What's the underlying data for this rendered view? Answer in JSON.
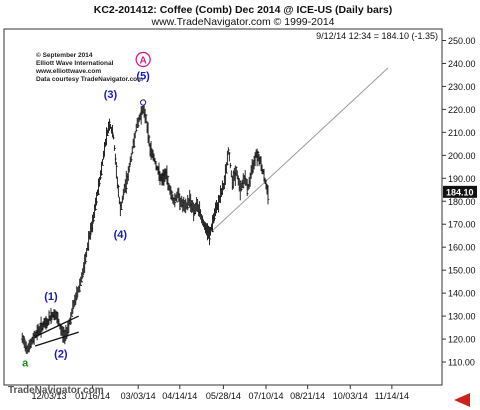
{
  "chart_data": {
    "type": "ohlc",
    "title": "KC2-201412:  Coffee (Comb) Dec 2014 @ ICE-US  (Daily bars)",
    "subtitle": "www.TradeNavigator.com © 1999-2014",
    "quote": "9/12/14 12:34 = 184.10 (-1.35)",
    "last_price": "184.10",
    "credits": [
      "© September 2014",
      "Elliott Wave International",
      "www.elliottwave.com",
      "Data courtesy TradeNavigator.com"
    ],
    "watermark": "TradeNavigator.com",
    "ylim": [
      100,
      255
    ],
    "y_ticks": [
      "110.00",
      "120.00",
      "130.00",
      "140.00",
      "150.00",
      "160.00",
      "170.00",
      "180.00",
      "190.00",
      "200.00",
      "210.00",
      "220.00",
      "230.00",
      "240.00",
      "250.00"
    ],
    "y_tick_values": [
      110,
      120,
      130,
      140,
      150,
      160,
      170,
      180,
      190,
      200,
      210,
      220,
      230,
      240,
      250
    ],
    "x_ticks": [
      "12/03/13",
      "01/16/14",
      "03/03/14",
      "04/14/14",
      "05/28/14",
      "07/10/14",
      "08/21/14",
      "10/03/14",
      "11/14/14"
    ],
    "x_tick_days": [
      0,
      44,
      90,
      132,
      176,
      219,
      261,
      304,
      346
    ],
    "x_range": [
      -28,
      362
    ],
    "price_path": [
      [
        -27,
        120
      ],
      [
        -22,
        116
      ],
      [
        -18,
        118
      ],
      [
        -14,
        122
      ],
      [
        -10,
        124
      ],
      [
        -6,
        126
      ],
      [
        -2,
        127
      ],
      [
        2,
        130
      ],
      [
        6,
        131
      ],
      [
        9,
        128
      ],
      [
        12,
        124
      ],
      [
        16,
        121
      ],
      [
        20,
        126
      ],
      [
        25,
        135
      ],
      [
        30,
        142
      ],
      [
        36,
        152
      ],
      [
        40,
        163
      ],
      [
        44,
        170
      ],
      [
        48,
        181
      ],
      [
        53,
        194
      ],
      [
        57,
        206
      ],
      [
        61,
        214
      ],
      [
        65,
        208
      ],
      [
        68,
        193
      ],
      [
        72,
        176
      ],
      [
        76,
        185
      ],
      [
        80,
        192
      ],
      [
        84,
        202
      ],
      [
        88,
        212
      ],
      [
        92,
        217
      ],
      [
        95,
        221
      ],
      [
        98,
        216
      ],
      [
        102,
        203
      ],
      [
        106,
        199
      ],
      [
        110,
        193
      ],
      [
        114,
        189
      ],
      [
        118,
        192
      ],
      [
        122,
        185
      ],
      [
        126,
        180
      ],
      [
        130,
        183
      ],
      [
        134,
        179
      ],
      [
        138,
        177
      ],
      [
        142,
        181
      ],
      [
        146,
        176
      ],
      [
        150,
        178
      ],
      [
        154,
        173
      ],
      [
        158,
        168
      ],
      [
        162,
        165
      ],
      [
        167,
        174
      ],
      [
        172,
        181
      ],
      [
        177,
        188
      ],
      [
        181,
        202
      ],
      [
        185,
        189
      ],
      [
        189,
        193
      ],
      [
        193,
        185
      ],
      [
        197,
        190
      ],
      [
        201,
        186
      ],
      [
        205,
        194
      ],
      [
        209,
        201
      ],
      [
        213,
        198
      ],
      [
        217,
        191
      ],
      [
        221,
        183
      ]
    ],
    "trendline": {
      "from": [
        162,
        166
      ],
      "to": [
        342,
        238
      ]
    },
    "channel_lines": [
      {
        "from": [
          -14,
          117
        ],
        "to": [
          30,
          123
        ]
      },
      {
        "from": [
          -14,
          121
        ],
        "to": [
          30,
          130
        ]
      }
    ],
    "annotations": [
      {
        "text": "a",
        "x": -24,
        "y": 108,
        "color": "#1a8a1a"
      },
      {
        "text": "(1)",
        "x": 2,
        "y": 137,
        "color": "#1a1aa8"
      },
      {
        "text": "(2)",
        "x": 12,
        "y": 112,
        "color": "#1a1aa8"
      },
      {
        "text": "(3)",
        "x": 62,
        "y": 225,
        "color": "#1a1aa8"
      },
      {
        "text": "(4)",
        "x": 72,
        "y": 164,
        "color": "#1a1aa8"
      },
      {
        "text": "(5)",
        "x": 95,
        "y": 233,
        "color": "#1a1aa8"
      }
    ],
    "circled_label": {
      "text": "A",
      "x": 95,
      "y": 240,
      "color": "#cc2288"
    },
    "peak_marker": {
      "x": 95,
      "y": 223
    },
    "grid": false,
    "colors": {
      "bars": "#111111",
      "wave_labels": "#1a1aa8",
      "circle_label": "#cc2288",
      "minor_label": "#1a8a1a",
      "trendline": "#9a9a9a",
      "arrow": "#cc2222"
    }
  }
}
